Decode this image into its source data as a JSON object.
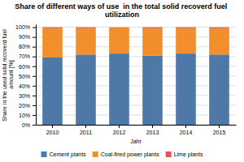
{
  "chart_data": {
    "type": "bar",
    "stacked": true,
    "title": "Share of different ways of use  in the total solid recoverd fuel utilization",
    "x_label": "Jahr",
    "y_label": "Share in the used solid recoverd fuel amount [%]",
    "categories": [
      "2010",
      "2011",
      "2012",
      "2013",
      "2014",
      "2015"
    ],
    "series": [
      {
        "name": "Cement plants",
        "values": [
          69,
          72,
          73,
          71,
          73,
          72
        ]
      },
      {
        "name": "Coal-fired power plants",
        "values": [
          30,
          27,
          27,
          28,
          26,
          27
        ]
      },
      {
        "name": "Lime plants",
        "values": [
          1,
          1,
          0,
          1,
          1,
          1
        ]
      }
    ],
    "ylim": [
      0,
      103
    ],
    "yticks": [
      {
        "value": 0,
        "label": "0%"
      },
      {
        "value": 10,
        "label": "10%"
      },
      {
        "value": 20,
        "label": "20%"
      },
      {
        "value": 30,
        "label": "30%"
      },
      {
        "value": 40,
        "label": "40%"
      },
      {
        "value": 50,
        "label": "50%"
      },
      {
        "value": 60,
        "label": "60%"
      },
      {
        "value": 70,
        "label": "70%"
      },
      {
        "value": 80,
        "label": "80%"
      },
      {
        "value": 90,
        "label": "90%"
      },
      {
        "value": 100,
        "label": "100%"
      }
    ],
    "grid": true,
    "legend": "bottom"
  }
}
